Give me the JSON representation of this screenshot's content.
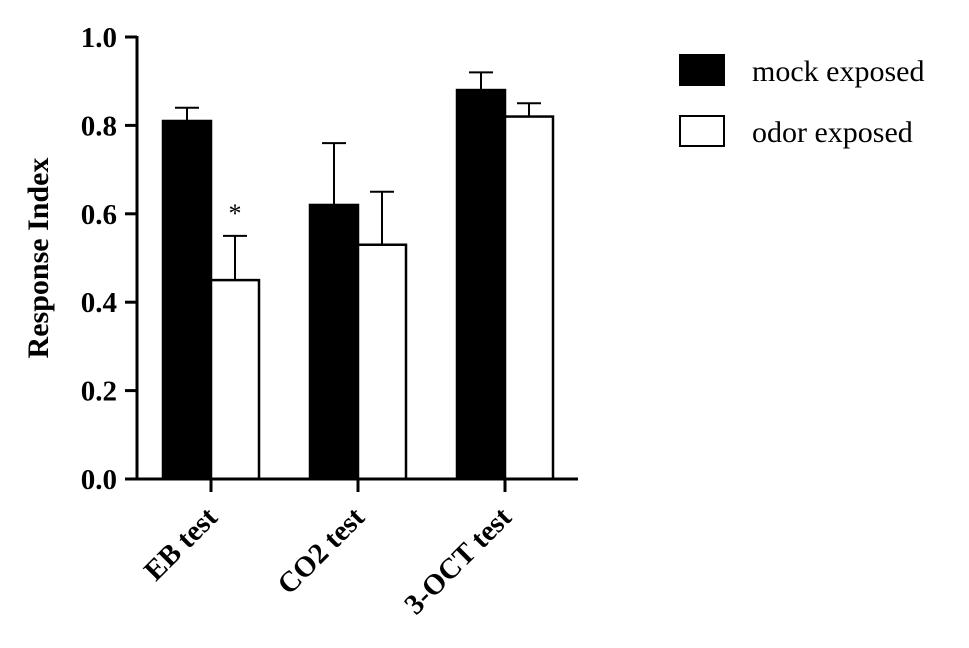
{
  "chart_data": {
    "type": "bar",
    "title": "",
    "xlabel": "",
    "ylabel": "Response Index",
    "ylim": [
      0,
      1.0
    ],
    "yticks": [
      "0.0",
      "0.2",
      "0.4",
      "0.6",
      "0.8",
      "1.0"
    ],
    "categories": [
      "EB test",
      "CO2 test",
      "3-OCT test"
    ],
    "series": [
      {
        "name": "mock exposed",
        "values": [
          0.81,
          0.62,
          0.88
        ],
        "errors": [
          0.03,
          0.14,
          0.04
        ],
        "fill": "#000000"
      },
      {
        "name": "odor exposed",
        "values": [
          0.45,
          0.53,
          0.82
        ],
        "errors": [
          0.1,
          0.12,
          0.03
        ],
        "fill": "#ffffff"
      }
    ],
    "annotations": [
      {
        "text": "*",
        "category": "EB test",
        "series": "odor exposed"
      }
    ],
    "legend": "top-right",
    "grid": false
  }
}
